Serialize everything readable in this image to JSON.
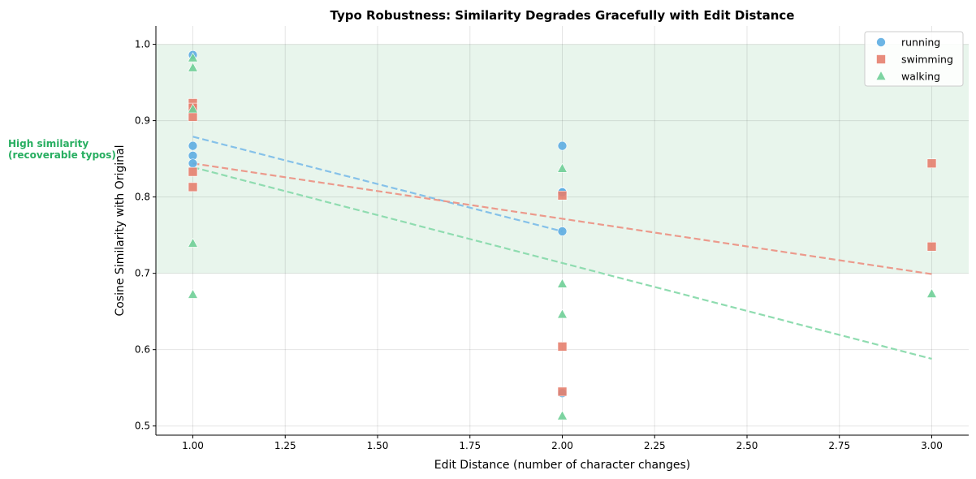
{
  "chart_data": {
    "type": "scatter",
    "title": "Typo Robustness: Similarity Degrades Gracefully with Edit Distance",
    "xlabel": "Edit Distance (number of character changes)",
    "ylabel": "Cosine Similarity with Original",
    "xlim": [
      0.9,
      3.1
    ],
    "ylim": [
      0.488,
      1.024
    ],
    "xticks": [
      "1.00",
      "1.25",
      "1.50",
      "1.75",
      "2.00",
      "2.25",
      "2.50",
      "2.75",
      "3.00"
    ],
    "yticks": [
      "0.5",
      "0.6",
      "0.7",
      "0.8",
      "0.9",
      "1.0"
    ],
    "grid": true,
    "legend": "top-right",
    "band": {
      "ymin": 0.7,
      "ymax": 1.0,
      "color": "#e8f5ec"
    },
    "annotation": {
      "lines": [
        "High similarity",
        "(recoverable typos)"
      ],
      "color": "#27ae60"
    },
    "series": [
      {
        "name": "running",
        "marker": "circle",
        "color": "#5dade2",
        "points": [
          [
            1,
            0.986
          ],
          [
            1,
            0.867
          ],
          [
            1,
            0.854
          ],
          [
            1,
            0.844
          ],
          [
            2,
            0.867
          ],
          [
            2,
            0.807
          ],
          [
            2,
            0.806
          ],
          [
            2,
            0.755
          ],
          [
            2,
            0.543
          ]
        ]
      },
      {
        "name": "swimming",
        "marker": "square",
        "color": "#e6806e",
        "points": [
          [
            1,
            0.923
          ],
          [
            1,
            0.917
          ],
          [
            1,
            0.905
          ],
          [
            1,
            0.833
          ],
          [
            1,
            0.813
          ],
          [
            2,
            0.802
          ],
          [
            2,
            0.604
          ],
          [
            2,
            0.545
          ],
          [
            3,
            0.844
          ],
          [
            3,
            0.735
          ]
        ]
      },
      {
        "name": "walking",
        "marker": "triangle",
        "color": "#6fcf97",
        "points": [
          [
            1,
            0.982
          ],
          [
            1,
            0.969
          ],
          [
            1,
            0.915
          ],
          [
            1,
            0.739
          ],
          [
            1,
            0.672
          ],
          [
            2,
            0.837
          ],
          [
            2,
            0.686
          ],
          [
            2,
            0.646
          ],
          [
            2,
            0.513
          ],
          [
            3,
            0.673
          ]
        ]
      }
    ],
    "trendlines": [
      {
        "series": "running",
        "from": [
          1,
          0.879
        ],
        "to": [
          2,
          0.755
        ],
        "color": "#85c1e9"
      },
      {
        "series": "swimming",
        "from": [
          1,
          0.844
        ],
        "to": [
          3,
          0.699
        ],
        "color": "#ec9a8c"
      },
      {
        "series": "walking",
        "from": [
          1,
          0.839
        ],
        "to": [
          3,
          0.588
        ],
        "color": "#8fdcb0"
      }
    ]
  }
}
